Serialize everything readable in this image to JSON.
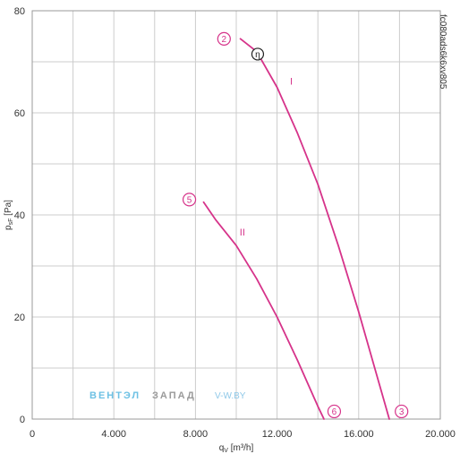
{
  "chart_data": {
    "type": "line",
    "xlabel": "q",
    "xlabel_sub": "V",
    "xlabel_unit": " [m³/h]",
    "ylabel": "p",
    "ylabel_sub": "sF",
    "ylabel_unit": " [Pa]",
    "xlim": [
      0,
      20000
    ],
    "ylim": [
      0,
      80
    ],
    "x_ticks": [
      0,
      4000,
      8000,
      12000,
      16000,
      20000
    ],
    "x_tick_labels": [
      "0",
      "4.000",
      "8.000",
      "12.000",
      "16.000",
      "20.000"
    ],
    "y_ticks": [
      0,
      20,
      40,
      60,
      80
    ],
    "y_tick_labels": [
      "0",
      "20",
      "40",
      "60",
      "80"
    ],
    "x_grid_step": 2000,
    "y_grid_step": 10,
    "grid": true,
    "code": "fc080ads6k6xv805",
    "series": [
      {
        "name": "I",
        "x": [
          10200,
          11000,
          12000,
          13000,
          14000,
          15000,
          16000,
          17000,
          17500
        ],
        "y": [
          74.5,
          72,
          65,
          56,
          46,
          34,
          21,
          7,
          0
        ]
      },
      {
        "name": "II",
        "x": [
          8400,
          9000,
          10000,
          11000,
          12000,
          13000,
          14000,
          14300
        ],
        "y": [
          42.5,
          39,
          34,
          27.5,
          20,
          11.5,
          2.5,
          0
        ]
      }
    ],
    "markers": [
      {
        "label": "2",
        "x": 9400,
        "y": 74.5,
        "style": "circle"
      },
      {
        "label": "η",
        "x": 11050,
        "y": 71.5,
        "style": "ring"
      },
      {
        "label": "5",
        "x": 7700,
        "y": 43,
        "style": "circle"
      },
      {
        "label": "6",
        "x": 14800,
        "y": 1.5,
        "style": "circle"
      },
      {
        "label": "3",
        "x": 18100,
        "y": 1.5,
        "style": "circle"
      }
    ],
    "curve_labels": [
      {
        "text": "I",
        "x": 12700,
        "y": 65.5
      },
      {
        "text": "II",
        "x": 10300,
        "y": 36
      }
    ]
  },
  "watermark": {
    "part1": "ВЕНТЭЛ",
    "part2": "ЗАПАД",
    "part3": "V-W.BY",
    "color1": "#6ec1e4",
    "color2": "#9a9a9a",
    "color3": "#8fc8e8"
  },
  "colors": {
    "curve": "#d6338a",
    "grid": "#cccccc",
    "axis": "#999999"
  }
}
